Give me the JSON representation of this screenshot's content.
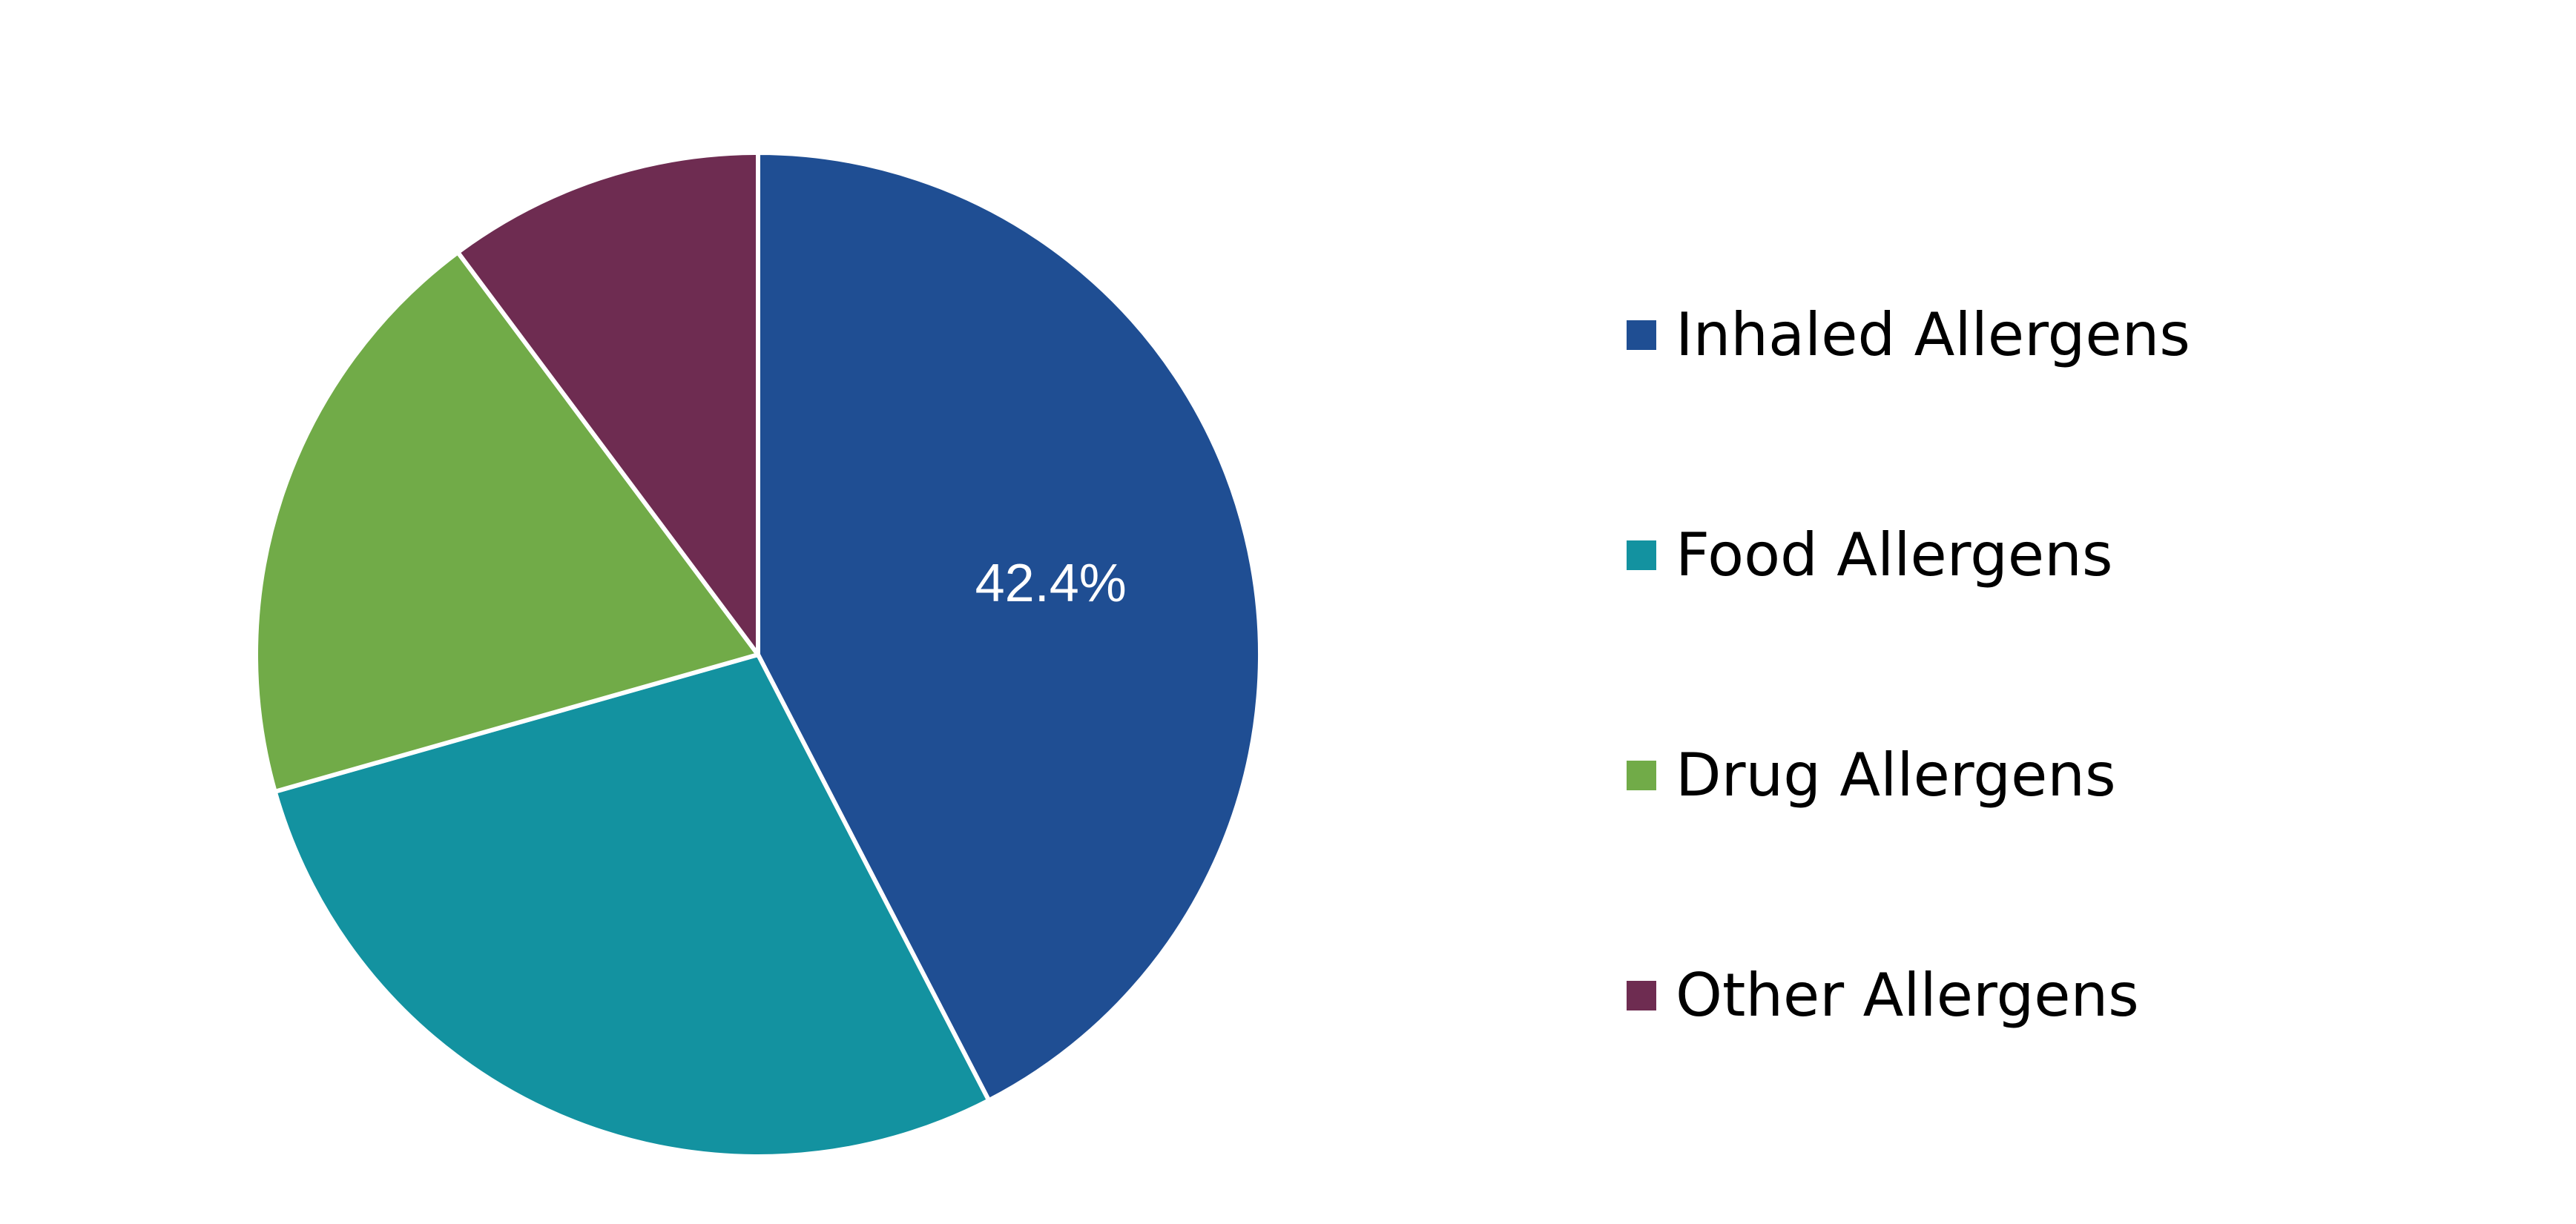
{
  "chart_data": {
    "type": "pie",
    "title": "",
    "slices": [
      {
        "name": "Inhaled Allergens",
        "value": 42.4,
        "color": "#1f4e93",
        "show_label": true,
        "label": "42.4%"
      },
      {
        "name": "Food Allergens",
        "value": 28.2,
        "color": "#1392a0",
        "show_label": false,
        "label": ""
      },
      {
        "name": "Drug Allergens",
        "value": 19.2,
        "color": "#71ab48",
        "show_label": false,
        "label": ""
      },
      {
        "name": "Other Allergens",
        "value": 10.2,
        "color": "#6e2c51",
        "show_label": false,
        "label": ""
      }
    ],
    "start_angle": "12 o'clock",
    "direction": "clockwise",
    "legend": {
      "position": "right",
      "entries": [
        "Inhaled Allergens",
        "Food Allergens",
        "Drug Allergens",
        "Other Allergens"
      ]
    }
  }
}
